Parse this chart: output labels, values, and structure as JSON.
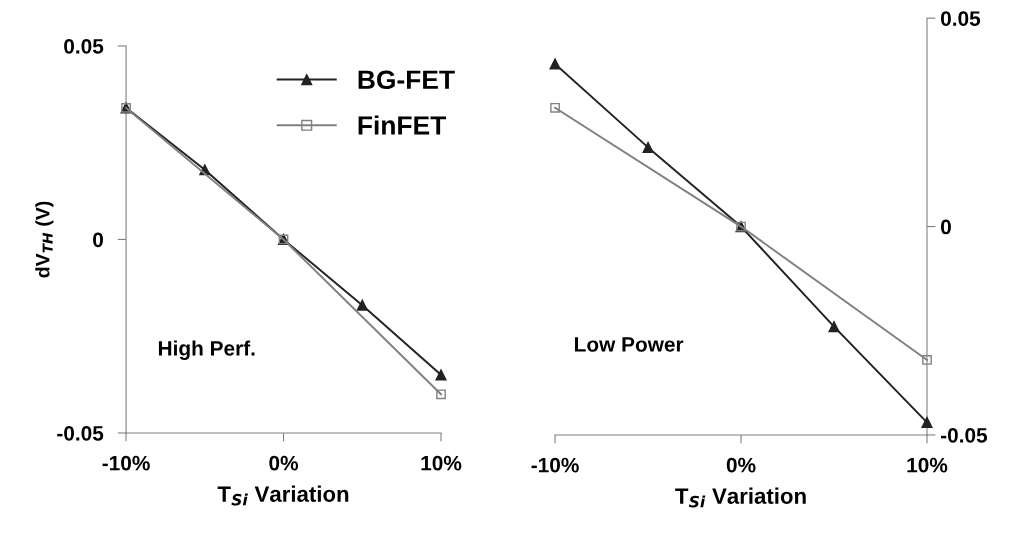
{
  "chart_data": [
    {
      "type": "line",
      "xlabel": "T$_{Si}$ Variation",
      "ylabel": "dV$_{TH}$ (V)",
      "annotations": [
        "High Perf."
      ],
      "xlim": [
        -10,
        10
      ],
      "xticks": [
        {
          "value": -10,
          "label": "-10%"
        },
        {
          "value": 0,
          "label": "0%"
        },
        {
          "value": 10,
          "label": "10%"
        }
      ],
      "ylim": [
        -0.05,
        0.05
      ],
      "yticks": [
        -0.05,
        0,
        0.05
      ],
      "legend": "top right",
      "grid": false,
      "series": [
        {
          "name": "BG-FET",
          "color": "#222222",
          "marker": "triangle",
          "x": [
            -10,
            -5,
            0,
            5,
            10
          ],
          "values": [
            0.034,
            0.018,
            0,
            -0.017,
            -0.035
          ]
        },
        {
          "name": "FinFET",
          "color": "#808080",
          "marker": "square",
          "x": [
            -10,
            0,
            10
          ],
          "values": [
            0.034,
            0,
            -0.04
          ]
        }
      ]
    },
    {
      "type": "line",
      "xlabel": "T$_{Si}$ Variation",
      "annotations": [
        "Low Power"
      ],
      "xlim": [
        -10,
        10
      ],
      "xticks": [
        {
          "value": -10,
          "label": "-10%"
        },
        {
          "value": 0,
          "label": "0%"
        },
        {
          "value": 10,
          "label": "10%"
        }
      ],
      "y2lim": [
        -0.05,
        0.05
      ],
      "y2ticks": [
        -0.05,
        0,
        0.05
      ],
      "legend": false,
      "grid": false,
      "series": [
        {
          "color": "#222222",
          "marker": "triangle",
          "axis": "y2",
          "x": [
            -10,
            -5,
            0,
            5,
            10
          ],
          "values": [
            0.039,
            0.019,
            0,
            -0.024,
            -0.047
          ]
        },
        {
          "color": "#808080",
          "marker": "square",
          "axis": "y2",
          "x": [
            -10,
            0,
            10
          ],
          "values": [
            0.0285,
            0,
            -0.032
          ]
        }
      ]
    }
  ]
}
